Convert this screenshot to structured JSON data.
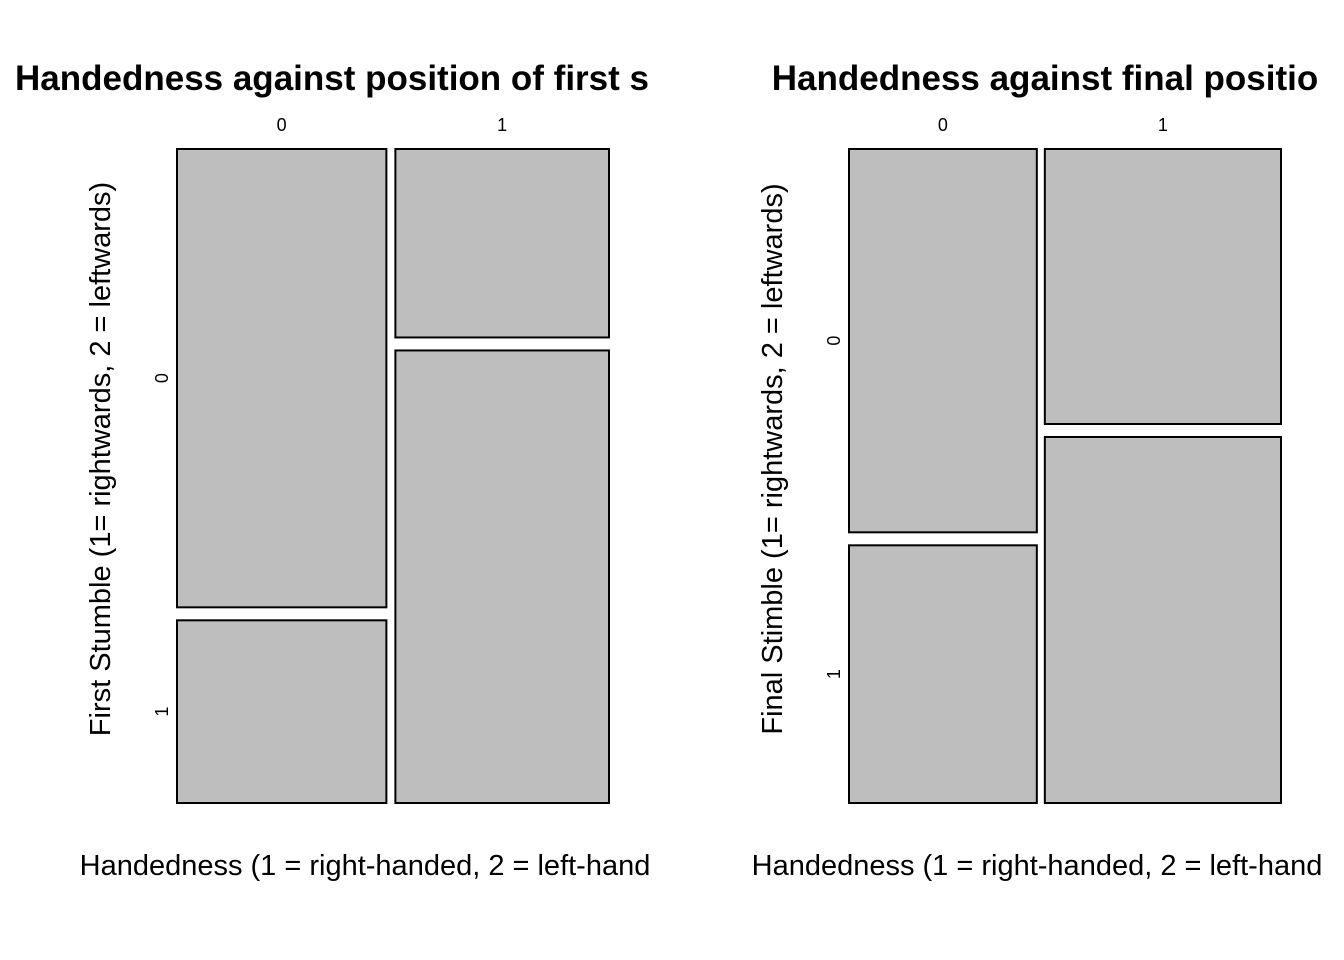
{
  "chart_data": [
    {
      "type": "mosaic",
      "title": "Handedness against position of first s",
      "xlabel": "Handedness (1 = right-handed, 2 = left-hand",
      "ylabel": "First Stumble (1= rightwards, 2 = leftwards)",
      "x_categories": [
        "0",
        "1"
      ],
      "y_categories": [
        "0",
        "1"
      ],
      "column_proportions": [
        0.495,
        0.505
      ],
      "cell_proportions": [
        {
          "x": "0",
          "y": "0",
          "proportion_within_column": 0.715
        },
        {
          "x": "0",
          "y": "1",
          "proportion_within_column": 0.285
        },
        {
          "x": "1",
          "y": "0",
          "proportion_within_column": 0.294
        },
        {
          "x": "1",
          "y": "1",
          "proportion_within_column": 0.706
        }
      ],
      "fill_color": "#bebebe"
    },
    {
      "type": "mosaic",
      "title": "Handedness against final positio",
      "xlabel": "Handedness (1 = right-handed, 2 = left-hand",
      "ylabel": "Final Stimble (1= rightwards, 2 = leftwards)",
      "x_categories": [
        "0",
        "1"
      ],
      "y_categories": [
        "0",
        "1"
      ],
      "column_proportions": [
        0.443,
        0.557
      ],
      "cell_proportions": [
        {
          "x": "0",
          "y": "0",
          "proportion_within_column": 0.598
        },
        {
          "x": "0",
          "y": "1",
          "proportion_within_column": 0.402
        },
        {
          "x": "1",
          "y": "0",
          "proportion_within_column": 0.429
        },
        {
          "x": "1",
          "y": "1",
          "proportion_within_column": 0.571
        }
      ],
      "fill_color": "#bebebe"
    }
  ]
}
